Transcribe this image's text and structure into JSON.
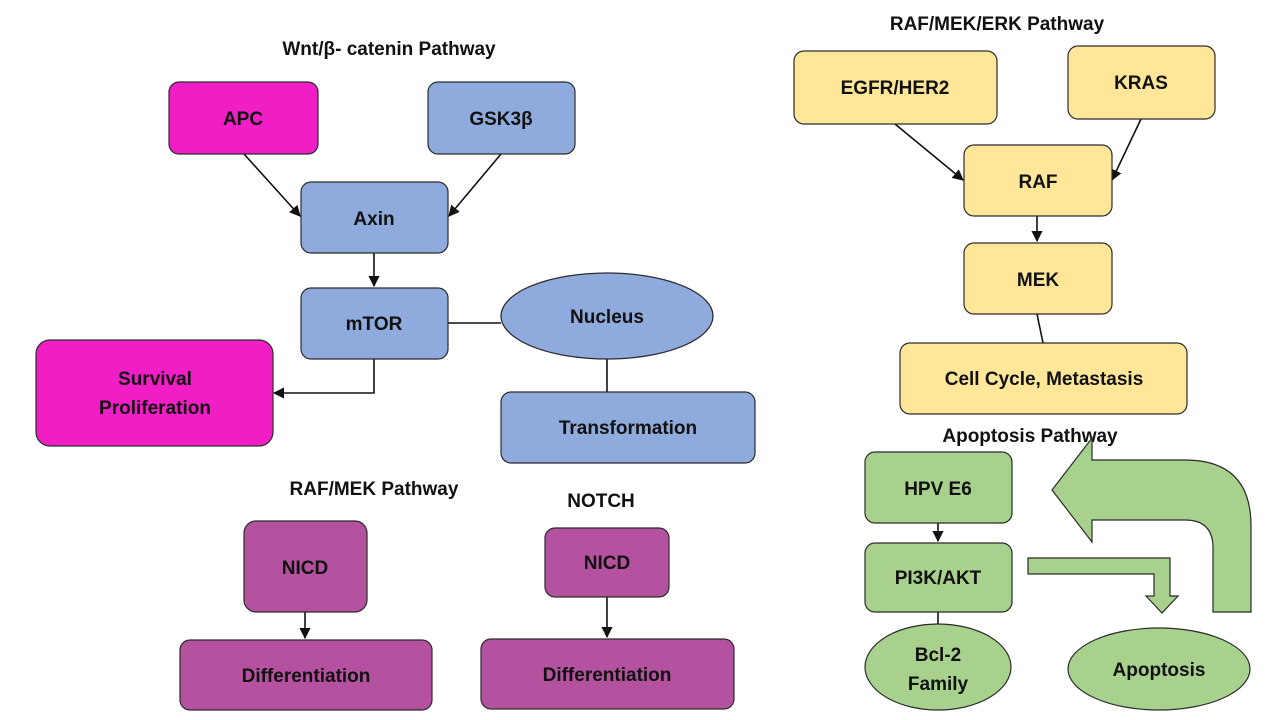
{
  "colors": {
    "magenta": "#f01ec4",
    "blue": "#8faadc",
    "yellow": "#ffe699",
    "purple": "#b4529f",
    "green": "#a9d18e",
    "green_arrow": "#a9d18e",
    "outline": "#2b2b2b",
    "text": "#111111"
  },
  "titles": {
    "wnt": "Wnt/β- catenin Pathway",
    "raf_mek_erk": "RAF/MEK/ERK Pathway",
    "raf_mek": "RAF/MEK Pathway",
    "notch": "NOTCH",
    "apoptosis": "Apoptosis Pathway"
  },
  "nodes": {
    "apc": "APC",
    "gsk3b": "GSK3β",
    "axin": "Axin",
    "mtor": "mTOR",
    "nucleus": "Nucleus",
    "survival_line1": "Survival",
    "survival_line2": "Proliferation",
    "transformation": "Transformation",
    "egfr": "EGFR/HER2",
    "kras": "KRAS",
    "raf": "RAF",
    "mek": "MEK",
    "cell_cycle": "Cell Cycle, Metastasis",
    "hpv": "HPV E6",
    "pi3k": "PI3K/AKT",
    "bcl2_line1": "Bcl-2",
    "bcl2_line2": "Family",
    "apoptosis": "Apoptosis",
    "nicd_1": "NICD",
    "diff_1": "Differentiation",
    "nicd_2": "NICD",
    "diff_2": "Differentiation"
  }
}
